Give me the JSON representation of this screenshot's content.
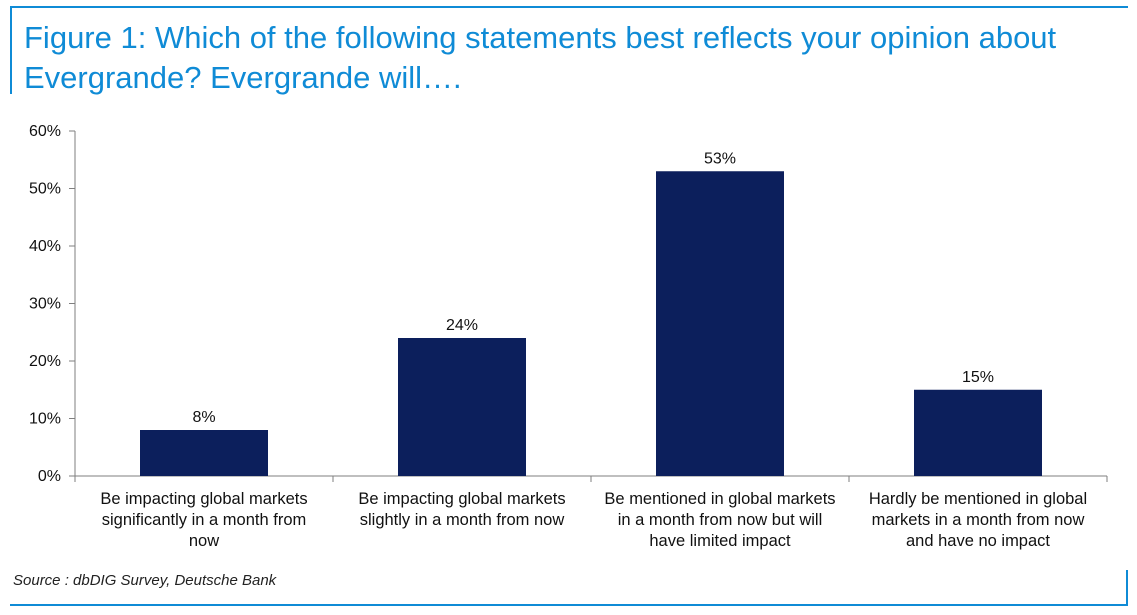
{
  "title": "Figure 1: Which of the following statements best reflects your opinion about Evergrande? Evergrande will….",
  "source": "Source : dbDIG Survey, Deutsche Bank",
  "colors": {
    "bar": "#0c1f5c",
    "accent": "#0f8bd6",
    "axis": "#7f7f7f"
  },
  "chart_data": {
    "type": "bar",
    "title": "Figure 1: Which of the following statements best reflects your opinion about Evergrande? Evergrande will….",
    "xlabel": "",
    "ylabel": "",
    "ylim": [
      0,
      60
    ],
    "yticks": [
      0,
      10,
      20,
      30,
      40,
      50,
      60
    ],
    "ytick_labels": [
      "0%",
      "10%",
      "20%",
      "30%",
      "40%",
      "50%",
      "60%"
    ],
    "grid": false,
    "categories": [
      [
        "Be impacting global markets",
        "significantly in a month from",
        "now"
      ],
      [
        "Be impacting global markets",
        "slightly in a month from now"
      ],
      [
        "Be mentioned in global markets",
        "in a month from now but will",
        "have limited impact"
      ],
      [
        "Hardly be mentioned in global",
        "markets in a month from now",
        "and have no impact"
      ]
    ],
    "values": [
      8,
      24,
      53,
      15
    ],
    "value_labels": [
      "8%",
      "24%",
      "53%",
      "15%"
    ]
  }
}
